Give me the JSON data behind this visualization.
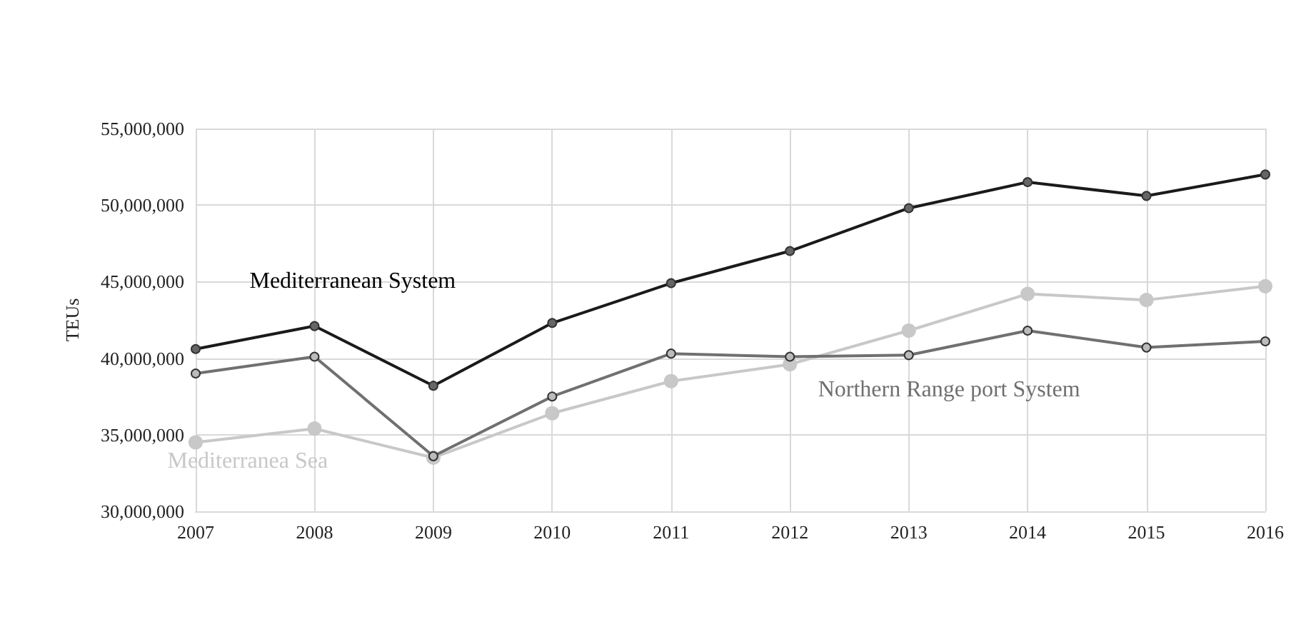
{
  "chart_data": {
    "type": "line",
    "ylabel": "TEUs",
    "categories": [
      "2007",
      "2008",
      "2009",
      "2010",
      "2011",
      "2012",
      "2013",
      "2014",
      "2015",
      "2016"
    ],
    "series": [
      {
        "name": "Mediterranean System",
        "color": "#1a1a1a",
        "values": [
          40600000,
          42100000,
          38200000,
          42300000,
          44900000,
          47000000,
          49800000,
          51500000,
          50600000,
          52000000
        ]
      },
      {
        "name": "Northern Range port System",
        "color": "#707070",
        "values": [
          39000000,
          40100000,
          33600000,
          37500000,
          40300000,
          40100000,
          40200000,
          41800000,
          40700000,
          41100000
        ]
      },
      {
        "name": "Mediterranea Sea",
        "color": "#c8c8c8",
        "values": [
          34500000,
          35400000,
          33500000,
          36400000,
          38500000,
          39600000,
          41800000,
          44200000,
          43800000,
          44700000
        ]
      }
    ],
    "ylim": [
      30000000,
      55000000
    ],
    "yticks": [
      {
        "value": 30000000,
        "label": "30,000,000"
      },
      {
        "value": 35000000,
        "label": "35,000,000"
      },
      {
        "value": 40000000,
        "label": "40,000,000"
      },
      {
        "value": 45000000,
        "label": "45,000,000"
      },
      {
        "value": 50000000,
        "label": "50,000,000"
      },
      {
        "value": 55000000,
        "label": "55,000,000"
      }
    ],
    "grid": true,
    "marker": "circle",
    "line_style": "solid",
    "legend": false
  }
}
